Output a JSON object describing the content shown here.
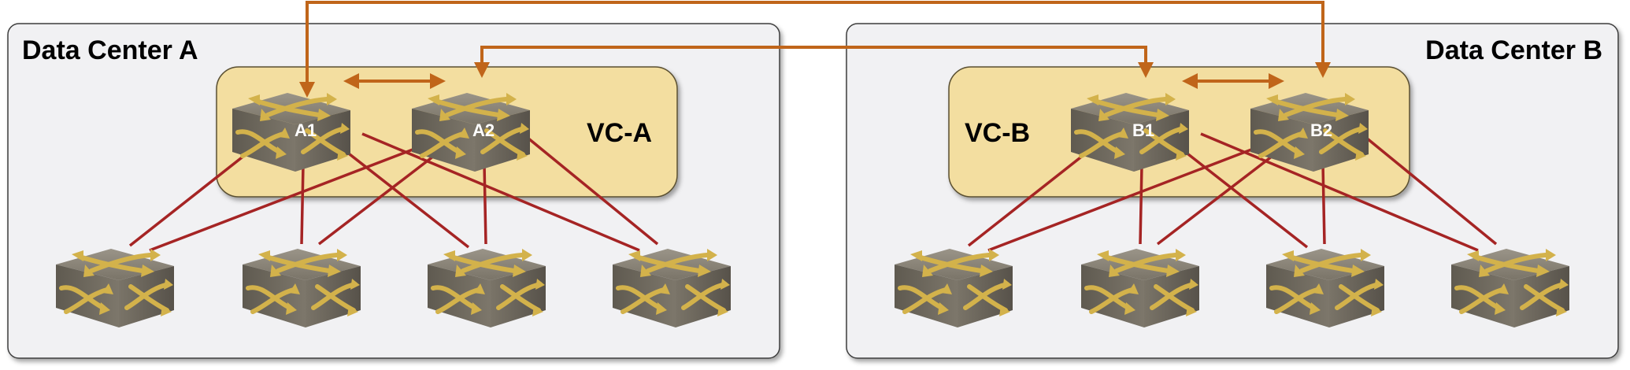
{
  "data_centers": [
    {
      "id": "A",
      "title": "Data Center A",
      "vc_label": "VC-A",
      "core_switches": [
        {
          "id": "A1",
          "label": "A1"
        },
        {
          "id": "A2",
          "label": "A2"
        }
      ],
      "access_switch_count": 4
    },
    {
      "id": "B",
      "title": "Data Center B",
      "vc_label": "VC-B",
      "core_switches": [
        {
          "id": "B1",
          "label": "B1"
        },
        {
          "id": "B2",
          "label": "B2"
        }
      ],
      "access_switch_count": 4
    }
  ],
  "inter_dc_links": [
    [
      "A1",
      "B2"
    ],
    [
      "A2",
      "B1"
    ]
  ],
  "vc_internal_links": [
    [
      "A1",
      "A2"
    ],
    [
      "B1",
      "B2"
    ]
  ],
  "colors": {
    "dc_panel_fill": "#f1f1f3",
    "dc_panel_stroke": "#3c3c3c",
    "vc_fill": "#f3dea0",
    "vc_stroke": "#5a5030",
    "uplink_line": "#a52424",
    "interconnect_line": "#c0651a",
    "switch_top": "#8a8478",
    "switch_side": "#6e685c",
    "switch_arrow": "#d3b24b"
  }
}
